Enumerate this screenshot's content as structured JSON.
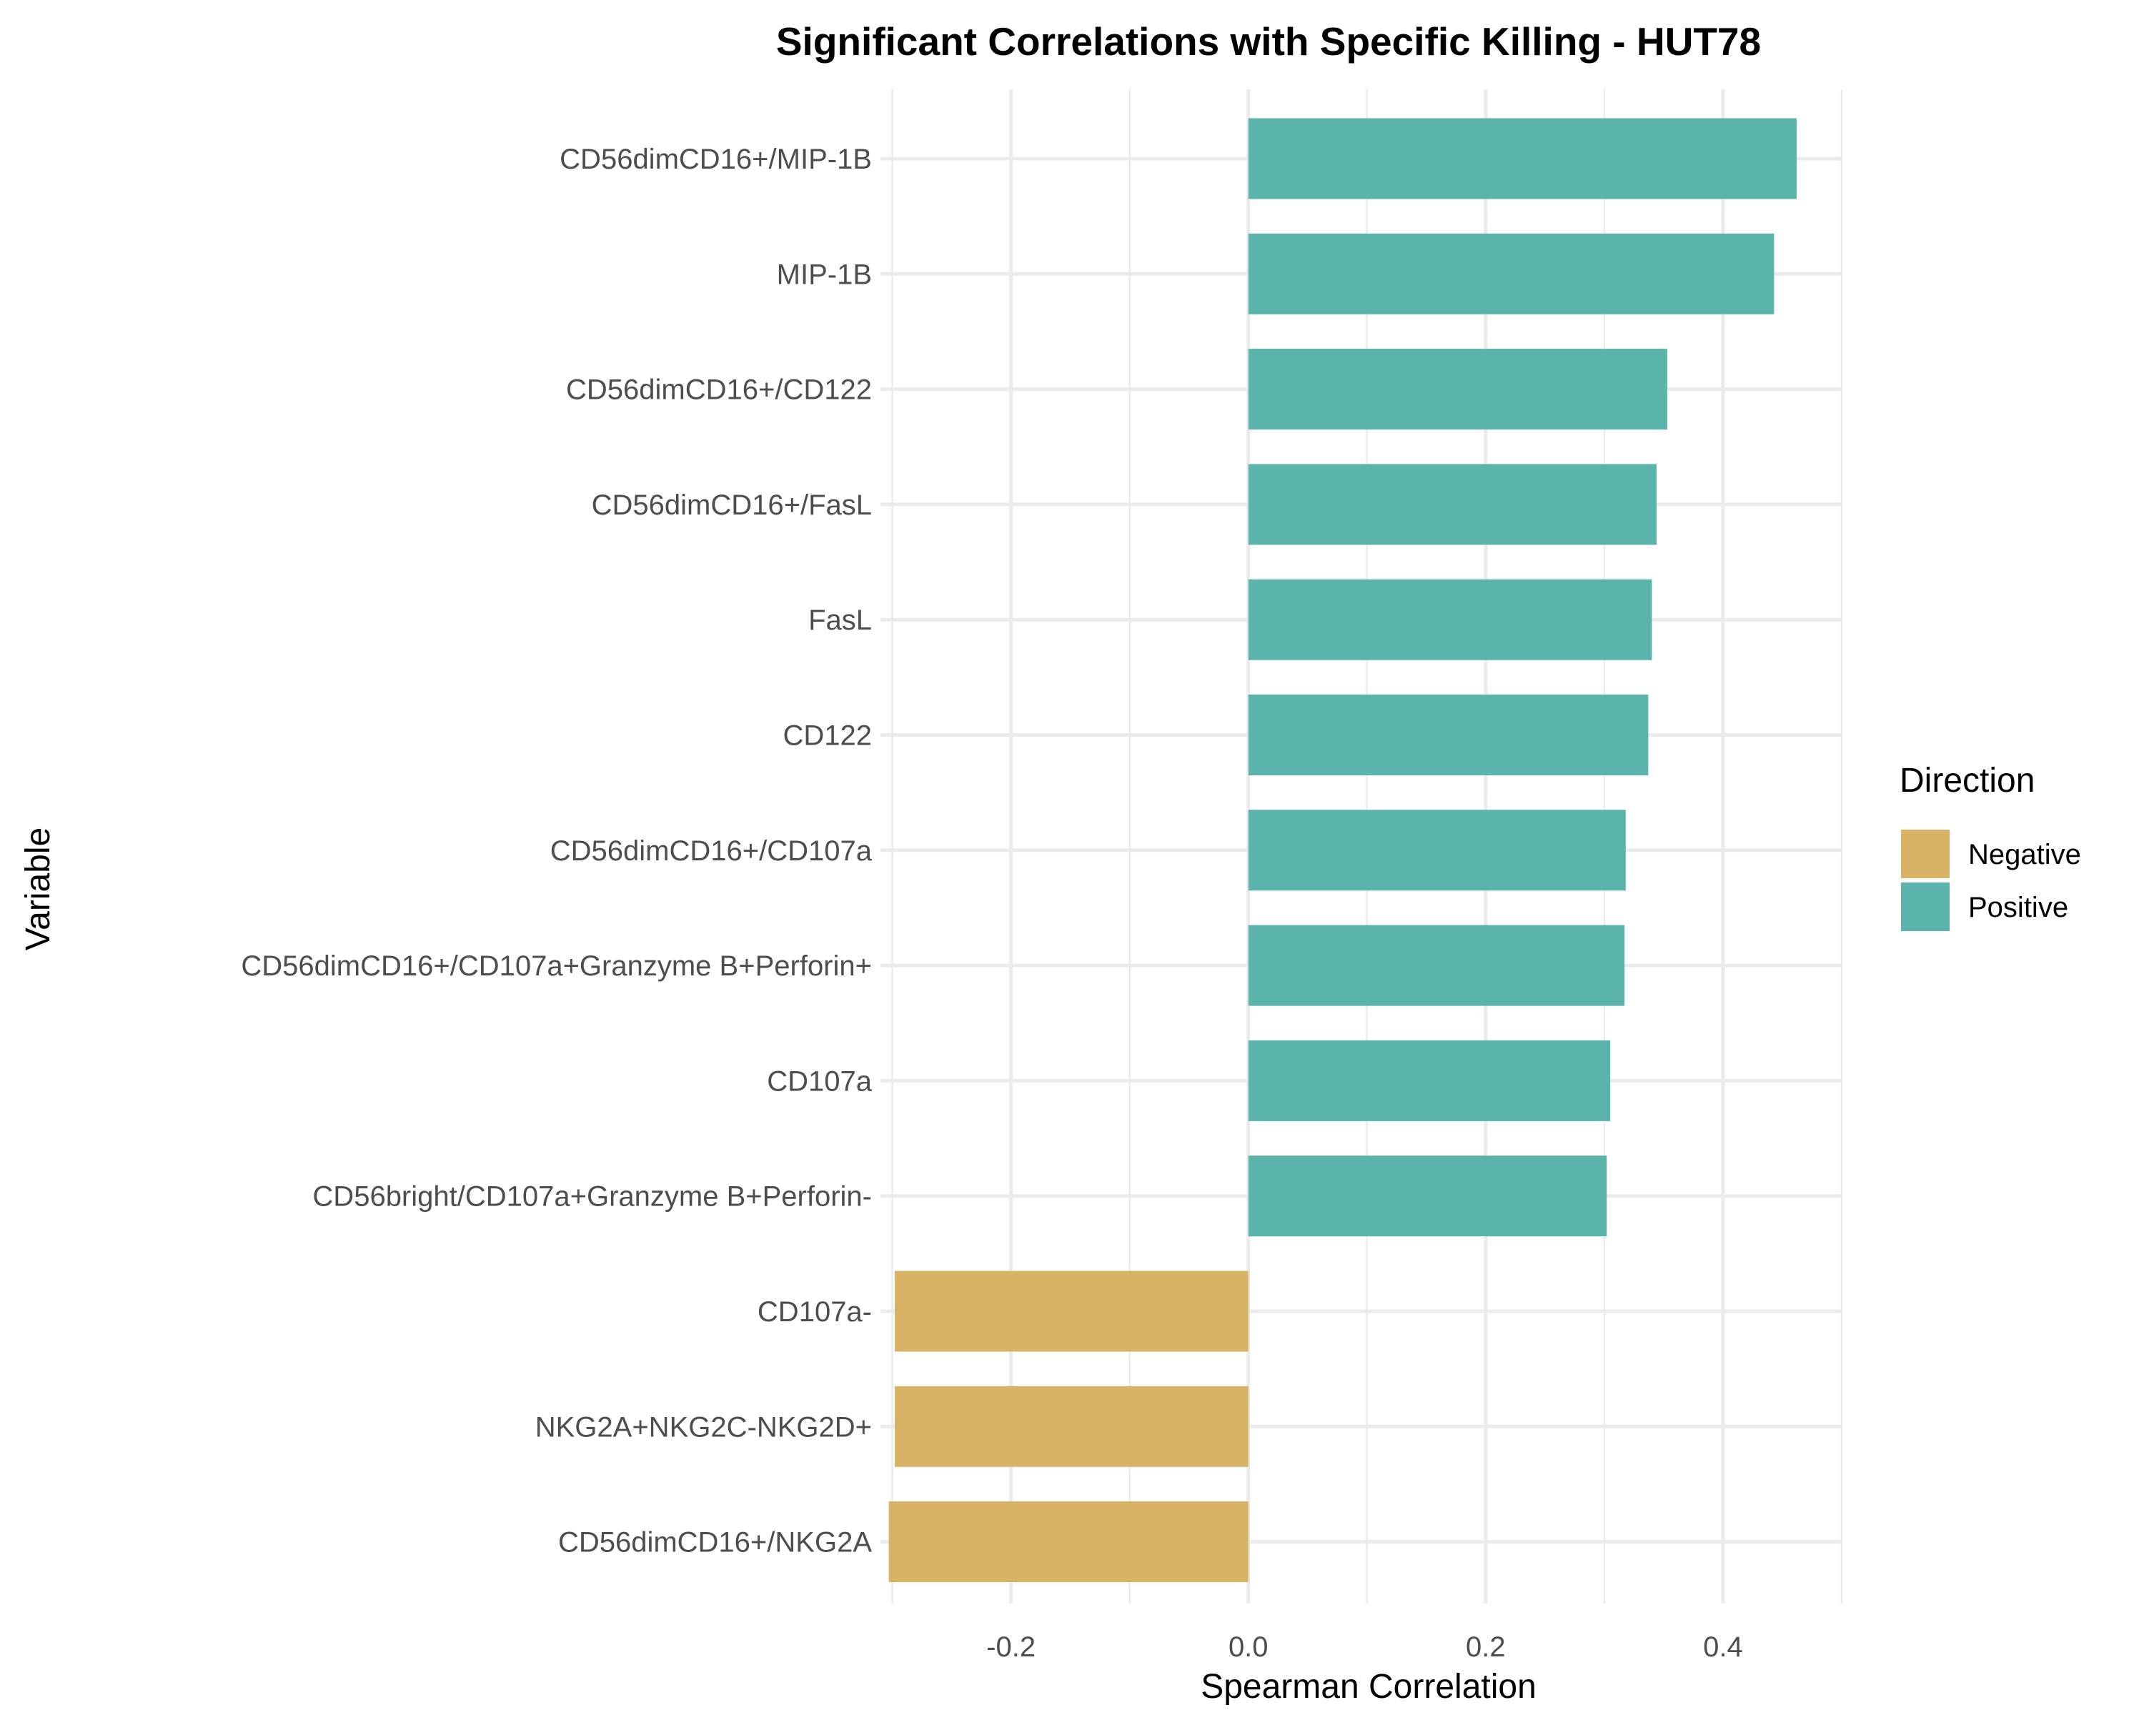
{
  "chart_data": {
    "type": "bar",
    "orientation": "horizontal",
    "title": "Significant Correlations with Specific Killing - HUT78",
    "xlabel": "Spearman Correlation",
    "ylabel": "Variable",
    "xlim": [
      -0.31,
      0.5
    ],
    "x_ticks": [
      -0.2,
      0.0,
      0.2,
      0.4
    ],
    "x_tick_labels": [
      "-0.2",
      "0.0",
      "0.2",
      "0.4"
    ],
    "grid": true,
    "categories": [
      "CD56dimCD16+/MIP-1B",
      "MIP-1B",
      "CD56dimCD16+/CD122",
      "CD56dimCD16+/FasL",
      "FasL",
      "CD122",
      "CD56dimCD16+/CD107a",
      "CD56dimCD16+/CD107a+Granzyme B+Perforin+",
      "CD107a",
      "CD56bright/CD107a+Granzyme B+Perforin-",
      "CD107a-",
      "NKG2A+NKG2C-NKG2D+",
      "CD56dimCD16+/NKG2A"
    ],
    "values": [
      0.462,
      0.443,
      0.353,
      0.344,
      0.34,
      0.337,
      0.318,
      0.317,
      0.305,
      0.302,
      -0.298,
      -0.298,
      -0.303
    ],
    "direction": [
      "Positive",
      "Positive",
      "Positive",
      "Positive",
      "Positive",
      "Positive",
      "Positive",
      "Positive",
      "Positive",
      "Positive",
      "Negative",
      "Negative",
      "Negative"
    ],
    "legend": {
      "title": "Direction",
      "position": "right",
      "entries": [
        {
          "label": "Negative",
          "color": "#D8B365"
        },
        {
          "label": "Positive",
          "color": "#5AB4AC"
        }
      ]
    },
    "colors": {
      "Negative": "#D8B365",
      "Positive": "#5AB4AC"
    }
  }
}
